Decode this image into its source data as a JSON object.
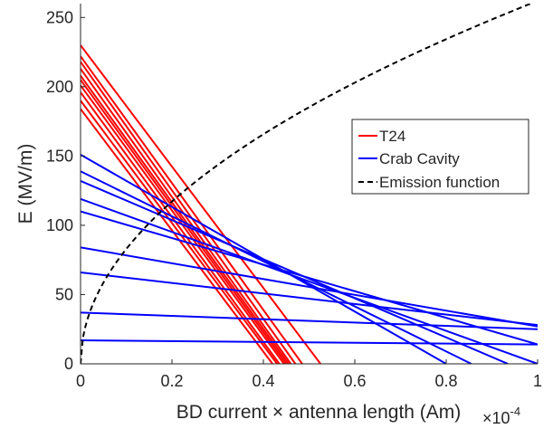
{
  "chart_data": {
    "type": "line",
    "title": "",
    "xlabel": "BD current × antenna length (Am)",
    "x_exponent_label": "×10",
    "x_exponent_power": "-4",
    "ylabel": "E (MV/m)",
    "xlim": [
      0,
      1
    ],
    "ylim": [
      0,
      260
    ],
    "x_ticks": [
      0,
      0.2,
      0.4,
      0.6,
      0.8,
      1
    ],
    "x_tick_labels": [
      "0",
      "0.2",
      "0.4",
      "0.6",
      "0.8",
      "1"
    ],
    "y_ticks": [
      0,
      50,
      100,
      150,
      200,
      250
    ],
    "y_tick_labels": [
      "0",
      "50",
      "100",
      "150",
      "200",
      "250"
    ],
    "grid": false,
    "legend_position": "top-right",
    "legend": [
      {
        "label": "T24",
        "color": "#ff0000",
        "style": "solid"
      },
      {
        "label": "Crab Cavity",
        "color": "#0000ff",
        "style": "solid"
      },
      {
        "label": "Emission function",
        "color": "#000000",
        "style": "dashed"
      }
    ],
    "series": [
      {
        "name": "T24",
        "color": "#ff0000",
        "lines": [
          [
            [
              0,
              230
            ],
            [
              0.525,
              0
            ]
          ],
          [
            [
              0,
              222
            ],
            [
              0.485,
              0
            ]
          ],
          [
            [
              0,
              218
            ],
            [
              0.47,
              0
            ]
          ],
          [
            [
              0,
              213
            ],
            [
              0.46,
              0
            ]
          ],
          [
            [
              0,
              208
            ],
            [
              0.455,
              0
            ]
          ],
          [
            [
              0,
              205
            ],
            [
              0.45,
              0
            ]
          ],
          [
            [
              0,
              201
            ],
            [
              0.445,
              0
            ]
          ],
          [
            [
              0,
              196
            ],
            [
              0.435,
              0
            ]
          ],
          [
            [
              0,
              190
            ],
            [
              0.43,
              0
            ]
          ],
          [
            [
              0,
              184
            ],
            [
              0.42,
              0
            ]
          ]
        ]
      },
      {
        "name": "Crab Cavity",
        "color": "#0000ff",
        "lines": [
          [
            [
              0,
              151
            ],
            [
              0.8,
              0
            ]
          ],
          [
            [
              0,
              139
            ],
            [
              0.855,
              0
            ]
          ],
          [
            [
              0,
              132
            ],
            [
              0.935,
              0
            ]
          ],
          [
            [
              0,
              119
            ],
            [
              1,
              0
            ]
          ],
          [
            [
              0,
              110
            ],
            [
              1,
              14
            ]
          ],
          [
            [
              0,
              84
            ],
            [
              1,
              27
            ]
          ],
          [
            [
              0,
              66
            ],
            [
              1,
              28
            ]
          ],
          [
            [
              0,
              37
            ],
            [
              1,
              25
            ]
          ],
          [
            [
              0,
              17
            ],
            [
              1,
              14
            ]
          ]
        ]
      },
      {
        "name": "Emission function",
        "color": "#000000",
        "style": "dashed",
        "model": "power",
        "coefficient": 262,
        "exponent": 0.5
      }
    ]
  }
}
